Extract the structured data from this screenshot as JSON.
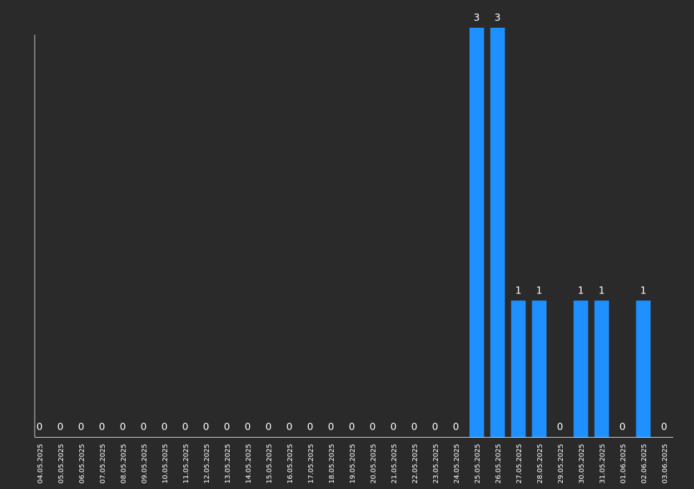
{
  "colors": {
    "background": "#2a2a2a",
    "bar": "#1e90ff",
    "axis": "#d0d0d0",
    "text": "#ffffff"
  },
  "chart_data": {
    "type": "bar",
    "title": "",
    "xlabel": "",
    "ylabel": "",
    "ylim": [
      0,
      3
    ],
    "grid": false,
    "legend": "none",
    "show_value_labels": true,
    "categories": [
      "04.05.2025",
      "05.05.2025",
      "06.05.2025",
      "07.05.2025",
      "08.05.2025",
      "09.05.2025",
      "10.05.2025",
      "11.05.2025",
      "12.05.2025",
      "13.05.2025",
      "14.05.2025",
      "15.05.2025",
      "16.05.2025",
      "17.05.2025",
      "18.05.2025",
      "19.05.2025",
      "20.05.2025",
      "21.05.2025",
      "22.05.2025",
      "23.05.2025",
      "24.05.2025",
      "25.05.2025",
      "26.05.2025",
      "27.05.2025",
      "28.05.2025",
      "29.05.2025",
      "30.05.2025",
      "31.05.2025",
      "01.06.2025",
      "02.06.2025",
      "03.06.2025"
    ],
    "values": [
      0,
      0,
      0,
      0,
      0,
      0,
      0,
      0,
      0,
      0,
      0,
      0,
      0,
      0,
      0,
      0,
      0,
      0,
      0,
      0,
      0,
      3,
      3,
      1,
      1,
      0,
      1,
      1,
      0,
      1,
      0
    ]
  }
}
